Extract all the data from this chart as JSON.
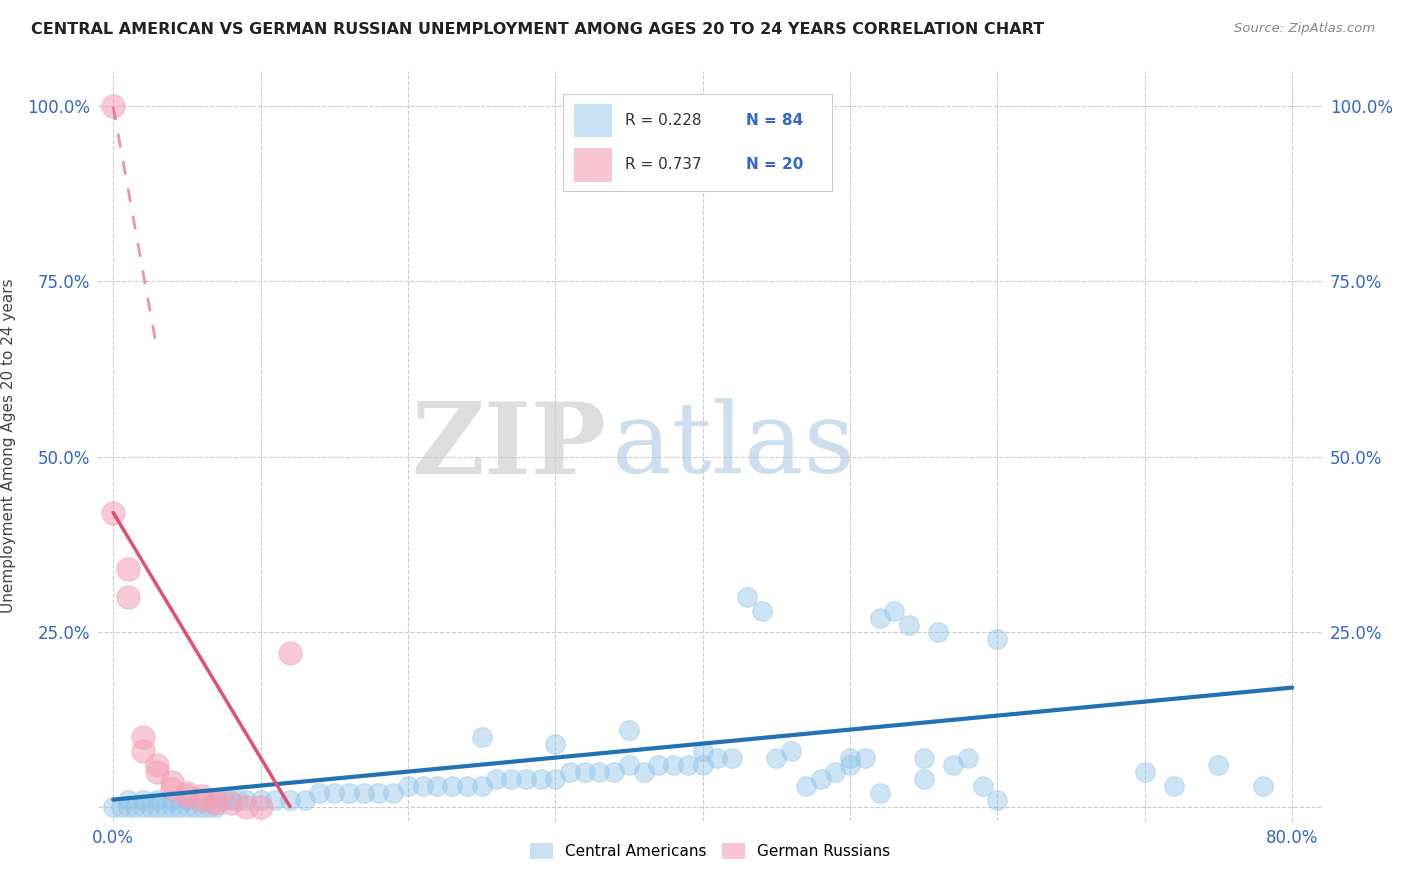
{
  "title": "CENTRAL AMERICAN VS GERMAN RUSSIAN UNEMPLOYMENT AMONG AGES 20 TO 24 YEARS CORRELATION CHART",
  "source": "Source: ZipAtlas.com",
  "ylabel": "Unemployment Among Ages 20 to 24 years",
  "xlim": [
    -0.01,
    0.82
  ],
  "ylim": [
    -0.02,
    1.05
  ],
  "xticks": [
    0.0,
    0.1,
    0.2,
    0.3,
    0.4,
    0.5,
    0.6,
    0.7,
    0.8
  ],
  "xticklabels": [
    "0.0%",
    "",
    "",
    "",
    "",
    "",
    "",
    "",
    "80.0%"
  ],
  "ytick_positions": [
    0.0,
    0.25,
    0.5,
    0.75,
    1.0
  ],
  "yticklabels": [
    "",
    "25.0%",
    "50.0%",
    "75.0%",
    "100.0%"
  ],
  "background_color": "#ffffff",
  "grid_color": "#cccccc",
  "blue_color": "#90c4e8",
  "blue_line_color": "#2171b5",
  "pink_color": "#f4a0b5",
  "pink_line_color": "#e05070",
  "blue_scatter": [
    [
      0.0,
      0.0
    ],
    [
      0.005,
      0.0
    ],
    [
      0.01,
      0.0
    ],
    [
      0.01,
      0.01
    ],
    [
      0.015,
      0.0
    ],
    [
      0.02,
      0.0
    ],
    [
      0.02,
      0.01
    ],
    [
      0.025,
      0.0
    ],
    [
      0.03,
      0.0
    ],
    [
      0.03,
      0.01
    ],
    [
      0.035,
      0.0
    ],
    [
      0.04,
      0.0
    ],
    [
      0.04,
      0.01
    ],
    [
      0.045,
      0.0
    ],
    [
      0.05,
      0.0
    ],
    [
      0.05,
      0.01
    ],
    [
      0.055,
      0.0
    ],
    [
      0.06,
      0.0
    ],
    [
      0.065,
      0.0
    ],
    [
      0.07,
      0.0
    ],
    [
      0.07,
      0.01
    ],
    [
      0.075,
      0.01
    ],
    [
      0.08,
      0.01
    ],
    [
      0.085,
      0.01
    ],
    [
      0.09,
      0.01
    ],
    [
      0.1,
      0.01
    ],
    [
      0.11,
      0.01
    ],
    [
      0.12,
      0.01
    ],
    [
      0.13,
      0.01
    ],
    [
      0.14,
      0.02
    ],
    [
      0.15,
      0.02
    ],
    [
      0.16,
      0.02
    ],
    [
      0.17,
      0.02
    ],
    [
      0.18,
      0.02
    ],
    [
      0.19,
      0.02
    ],
    [
      0.2,
      0.03
    ],
    [
      0.21,
      0.03
    ],
    [
      0.22,
      0.03
    ],
    [
      0.23,
      0.03
    ],
    [
      0.24,
      0.03
    ],
    [
      0.25,
      0.03
    ],
    [
      0.26,
      0.04
    ],
    [
      0.27,
      0.04
    ],
    [
      0.28,
      0.04
    ],
    [
      0.29,
      0.04
    ],
    [
      0.3,
      0.04
    ],
    [
      0.31,
      0.05
    ],
    [
      0.32,
      0.05
    ],
    [
      0.33,
      0.05
    ],
    [
      0.34,
      0.05
    ],
    [
      0.35,
      0.06
    ],
    [
      0.36,
      0.05
    ],
    [
      0.37,
      0.06
    ],
    [
      0.38,
      0.06
    ],
    [
      0.39,
      0.06
    ],
    [
      0.4,
      0.06
    ],
    [
      0.41,
      0.07
    ],
    [
      0.42,
      0.07
    ],
    [
      0.43,
      0.3
    ],
    [
      0.44,
      0.28
    ],
    [
      0.45,
      0.07
    ],
    [
      0.46,
      0.08
    ],
    [
      0.47,
      0.03
    ],
    [
      0.48,
      0.04
    ],
    [
      0.49,
      0.05
    ],
    [
      0.5,
      0.06
    ],
    [
      0.51,
      0.07
    ],
    [
      0.52,
      0.27
    ],
    [
      0.53,
      0.28
    ],
    [
      0.54,
      0.26
    ],
    [
      0.55,
      0.07
    ],
    [
      0.56,
      0.25
    ],
    [
      0.57,
      0.06
    ],
    [
      0.58,
      0.07
    ],
    [
      0.59,
      0.03
    ],
    [
      0.6,
      0.24
    ],
    [
      0.5,
      0.07
    ],
    [
      0.52,
      0.02
    ],
    [
      0.55,
      0.04
    ],
    [
      0.6,
      0.01
    ],
    [
      0.7,
      0.05
    ],
    [
      0.72,
      0.03
    ],
    [
      0.75,
      0.06
    ],
    [
      0.78,
      0.03
    ],
    [
      0.25,
      0.1
    ],
    [
      0.3,
      0.09
    ],
    [
      0.35,
      0.11
    ],
    [
      0.4,
      0.08
    ]
  ],
  "pink_scatter": [
    [
      0.0,
      1.0
    ],
    [
      0.01,
      0.34
    ],
    [
      0.01,
      0.3
    ],
    [
      0.02,
      0.1
    ],
    [
      0.02,
      0.08
    ],
    [
      0.03,
      0.06
    ],
    [
      0.03,
      0.05
    ],
    [
      0.04,
      0.035
    ],
    [
      0.04,
      0.025
    ],
    [
      0.05,
      0.02
    ],
    [
      0.05,
      0.015
    ],
    [
      0.06,
      0.015
    ],
    [
      0.06,
      0.01
    ],
    [
      0.07,
      0.01
    ],
    [
      0.07,
      0.005
    ],
    [
      0.08,
      0.005
    ],
    [
      0.09,
      0.0
    ],
    [
      0.1,
      0.0
    ],
    [
      0.0,
      0.42
    ],
    [
      0.12,
      0.22
    ]
  ],
  "blue_trendline_solid": [
    [
      0.0,
      0.01
    ],
    [
      0.8,
      0.17
    ]
  ],
  "pink_trendline_solid": [
    [
      0.0,
      0.42
    ],
    [
      0.12,
      0.0
    ]
  ],
  "pink_trendline_dashed": [
    [
      0.0,
      1.0
    ],
    [
      0.03,
      0.65
    ]
  ]
}
